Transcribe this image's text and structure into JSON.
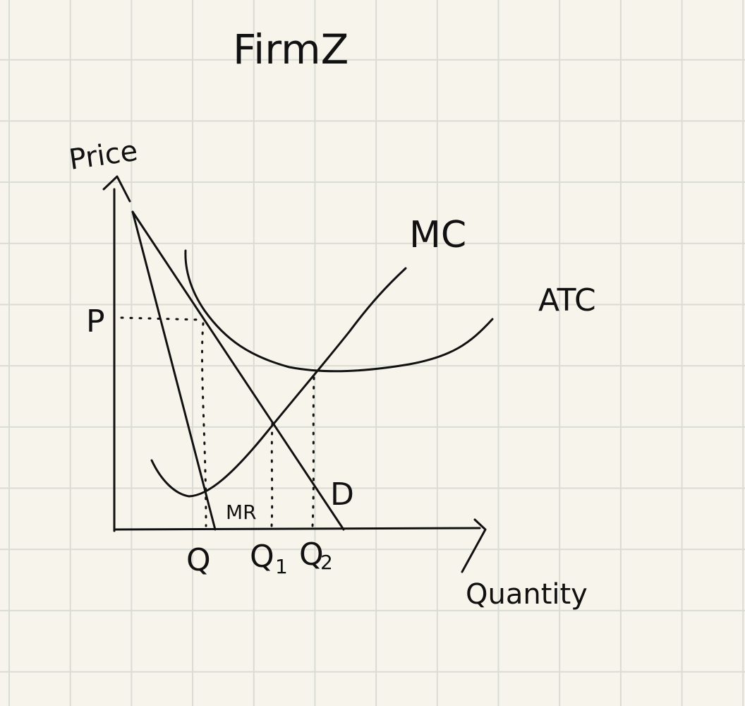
{
  "diagram": {
    "title": "FirmZ",
    "axes": {
      "y_label": "Price",
      "x_label": "Quantity"
    },
    "curves": {
      "mc": "MC",
      "atc": "ATC",
      "demand": "D",
      "mr": "MR"
    },
    "markers": {
      "price": "P",
      "q": "Q",
      "q1": "Q",
      "q1_subscript": "1",
      "q2": "Q",
      "q2_subscript": "2"
    },
    "colors": {
      "ink": "#111111",
      "paper": "#f7f5eb",
      "grid": "#d9dbd5"
    }
  }
}
